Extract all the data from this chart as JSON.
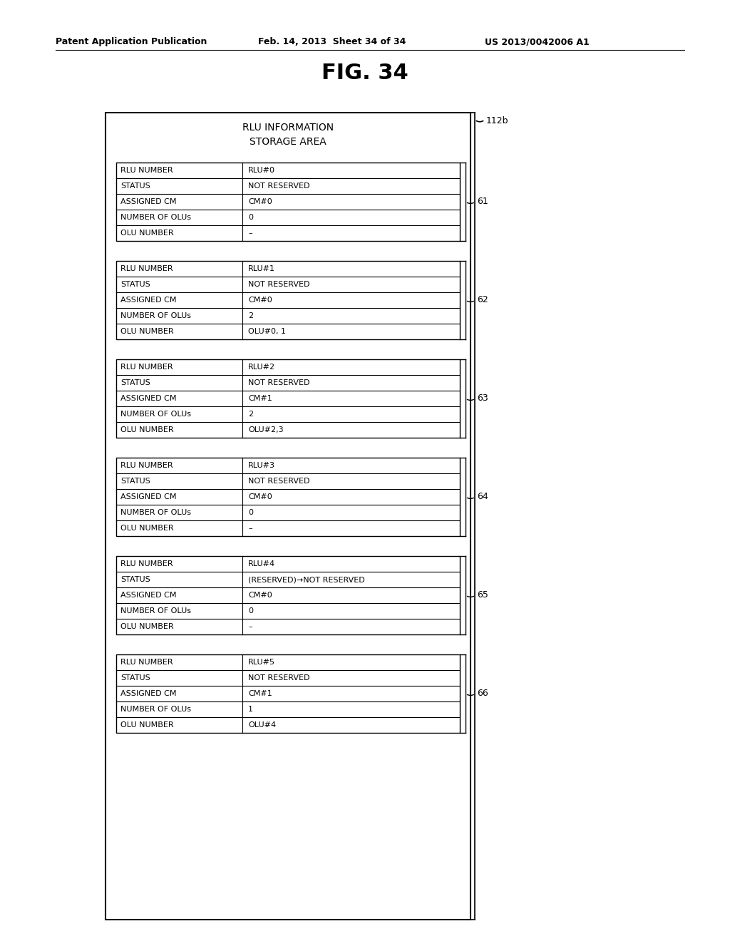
{
  "title_header": "Patent Application Publication",
  "title_date": "Feb. 14, 2013  Sheet 34 of 34",
  "title_patent": "US 2013/0042006 A1",
  "fig_title": "FIG. 34",
  "main_label": "112b",
  "header_text_line1": "RLU INFORMATION",
  "header_text_line2": "STORAGE AREA",
  "tables": [
    {
      "label": "61",
      "rows": [
        [
          "RLU NUMBER",
          "RLU#0"
        ],
        [
          "STATUS",
          "NOT RESERVED"
        ],
        [
          "ASSIGNED CM",
          "CM#0"
        ],
        [
          "NUMBER OF OLUs",
          "0"
        ],
        [
          "OLU NUMBER",
          "–"
        ]
      ]
    },
    {
      "label": "62",
      "rows": [
        [
          "RLU NUMBER",
          "RLU#1"
        ],
        [
          "STATUS",
          "NOT RESERVED"
        ],
        [
          "ASSIGNED CM",
          "CM#0"
        ],
        [
          "NUMBER OF OLUs",
          "2"
        ],
        [
          "OLU NUMBER",
          "OLU#0, 1"
        ]
      ]
    },
    {
      "label": "63",
      "rows": [
        [
          "RLU NUMBER",
          "RLU#2"
        ],
        [
          "STATUS",
          "NOT RESERVED"
        ],
        [
          "ASSIGNED CM",
          "CM#1"
        ],
        [
          "NUMBER OF OLUs",
          "2"
        ],
        [
          "OLU NUMBER",
          "OLU#2,3"
        ]
      ]
    },
    {
      "label": "64",
      "rows": [
        [
          "RLU NUMBER",
          "RLU#3"
        ],
        [
          "STATUS",
          "NOT RESERVED"
        ],
        [
          "ASSIGNED CM",
          "CM#0"
        ],
        [
          "NUMBER OF OLUs",
          "0"
        ],
        [
          "OLU NUMBER",
          "–"
        ]
      ]
    },
    {
      "label": "65",
      "rows": [
        [
          "RLU NUMBER",
          "RLU#4"
        ],
        [
          "STATUS",
          "(RESERVED)→NOT RESERVED"
        ],
        [
          "ASSIGNED CM",
          "CM#0"
        ],
        [
          "NUMBER OF OLUs",
          "0"
        ],
        [
          "OLU NUMBER",
          "–"
        ]
      ]
    },
    {
      "label": "66",
      "rows": [
        [
          "RLU NUMBER",
          "RLU#5"
        ],
        [
          "STATUS",
          "NOT RESERVED"
        ],
        [
          "ASSIGNED CM",
          "CM#1"
        ],
        [
          "NUMBER OF OLUs",
          "1"
        ],
        [
          "OLU NUMBER",
          "OLU#4"
        ]
      ]
    }
  ],
  "bg_color": "#ffffff",
  "text_color": "#000000",
  "line_color": "#000000"
}
